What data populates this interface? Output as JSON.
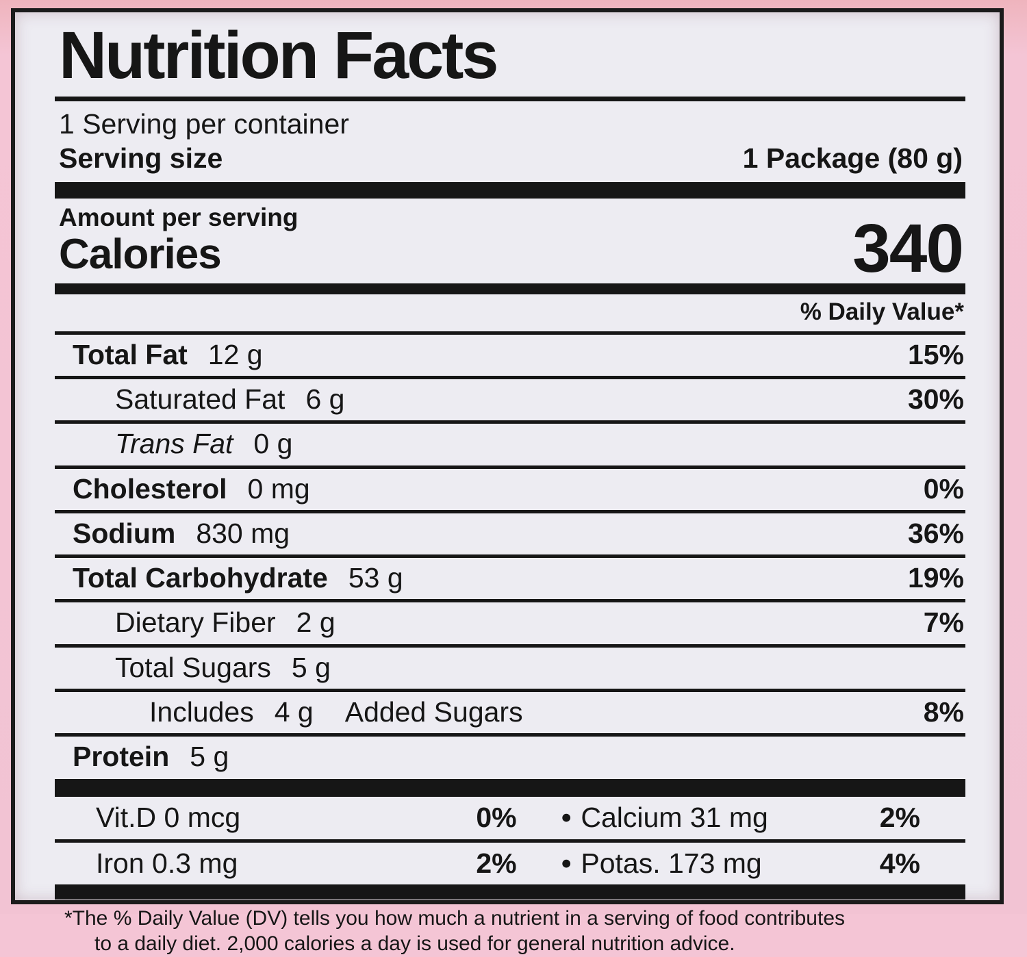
{
  "page": {
    "background_color": "#f4c5d5",
    "label_background": "#edecf2",
    "ink_color": "#161616"
  },
  "label": {
    "title": "Nutrition Facts",
    "servings_per_container": "1 Serving per container",
    "serving_size": {
      "label": "Serving size",
      "value": "1 Package (80 g)"
    },
    "calories": {
      "amount_per_serving": "Amount per serving",
      "label": "Calories",
      "value": "340"
    },
    "daily_value_header": "% Daily Value*",
    "nutrients": [
      {
        "name": "Total Fat",
        "amount": "12 g",
        "dv": "15%"
      },
      {
        "name": "Saturated Fat",
        "amount": "6 g",
        "dv": "30%"
      },
      {
        "name": "Trans Fat",
        "amount": "0 g",
        "dv": ""
      },
      {
        "name": "Cholesterol",
        "amount": "0 mg",
        "dv": "0%"
      },
      {
        "name": "Sodium",
        "amount": "830 mg",
        "dv": "36%"
      },
      {
        "name": "Total Carbohydrate",
        "amount": "53 g",
        "dv": "19%"
      },
      {
        "name": "Dietary Fiber",
        "amount": "2 g",
        "dv": "7%"
      },
      {
        "name": "Total Sugars",
        "amount": "5 g",
        "dv": ""
      },
      {
        "name": "Includes",
        "amount": "4 g",
        "suffix": "Added Sugars",
        "dv": "8%"
      },
      {
        "name": "Protein",
        "amount": "5 g",
        "dv": ""
      }
    ],
    "micro_rows": [
      {
        "left": {
          "name": "Vit.D 0 mcg",
          "dv": "0%"
        },
        "right": {
          "bullet": "•",
          "name": "Calcium 31 mg",
          "dv": "2%"
        }
      },
      {
        "left": {
          "name": "Iron 0.3 mg",
          "dv": "2%"
        },
        "right": {
          "bullet": "•",
          "name": "Potas. 173 mg",
          "dv": "4%"
        }
      }
    ],
    "footnote": {
      "line1": "*The % Daily Value (DV) tells you how much a nutrient in a serving of food contributes",
      "line2": "to a daily diet. 2,000 calories a day is used for general nutrition advice."
    }
  }
}
